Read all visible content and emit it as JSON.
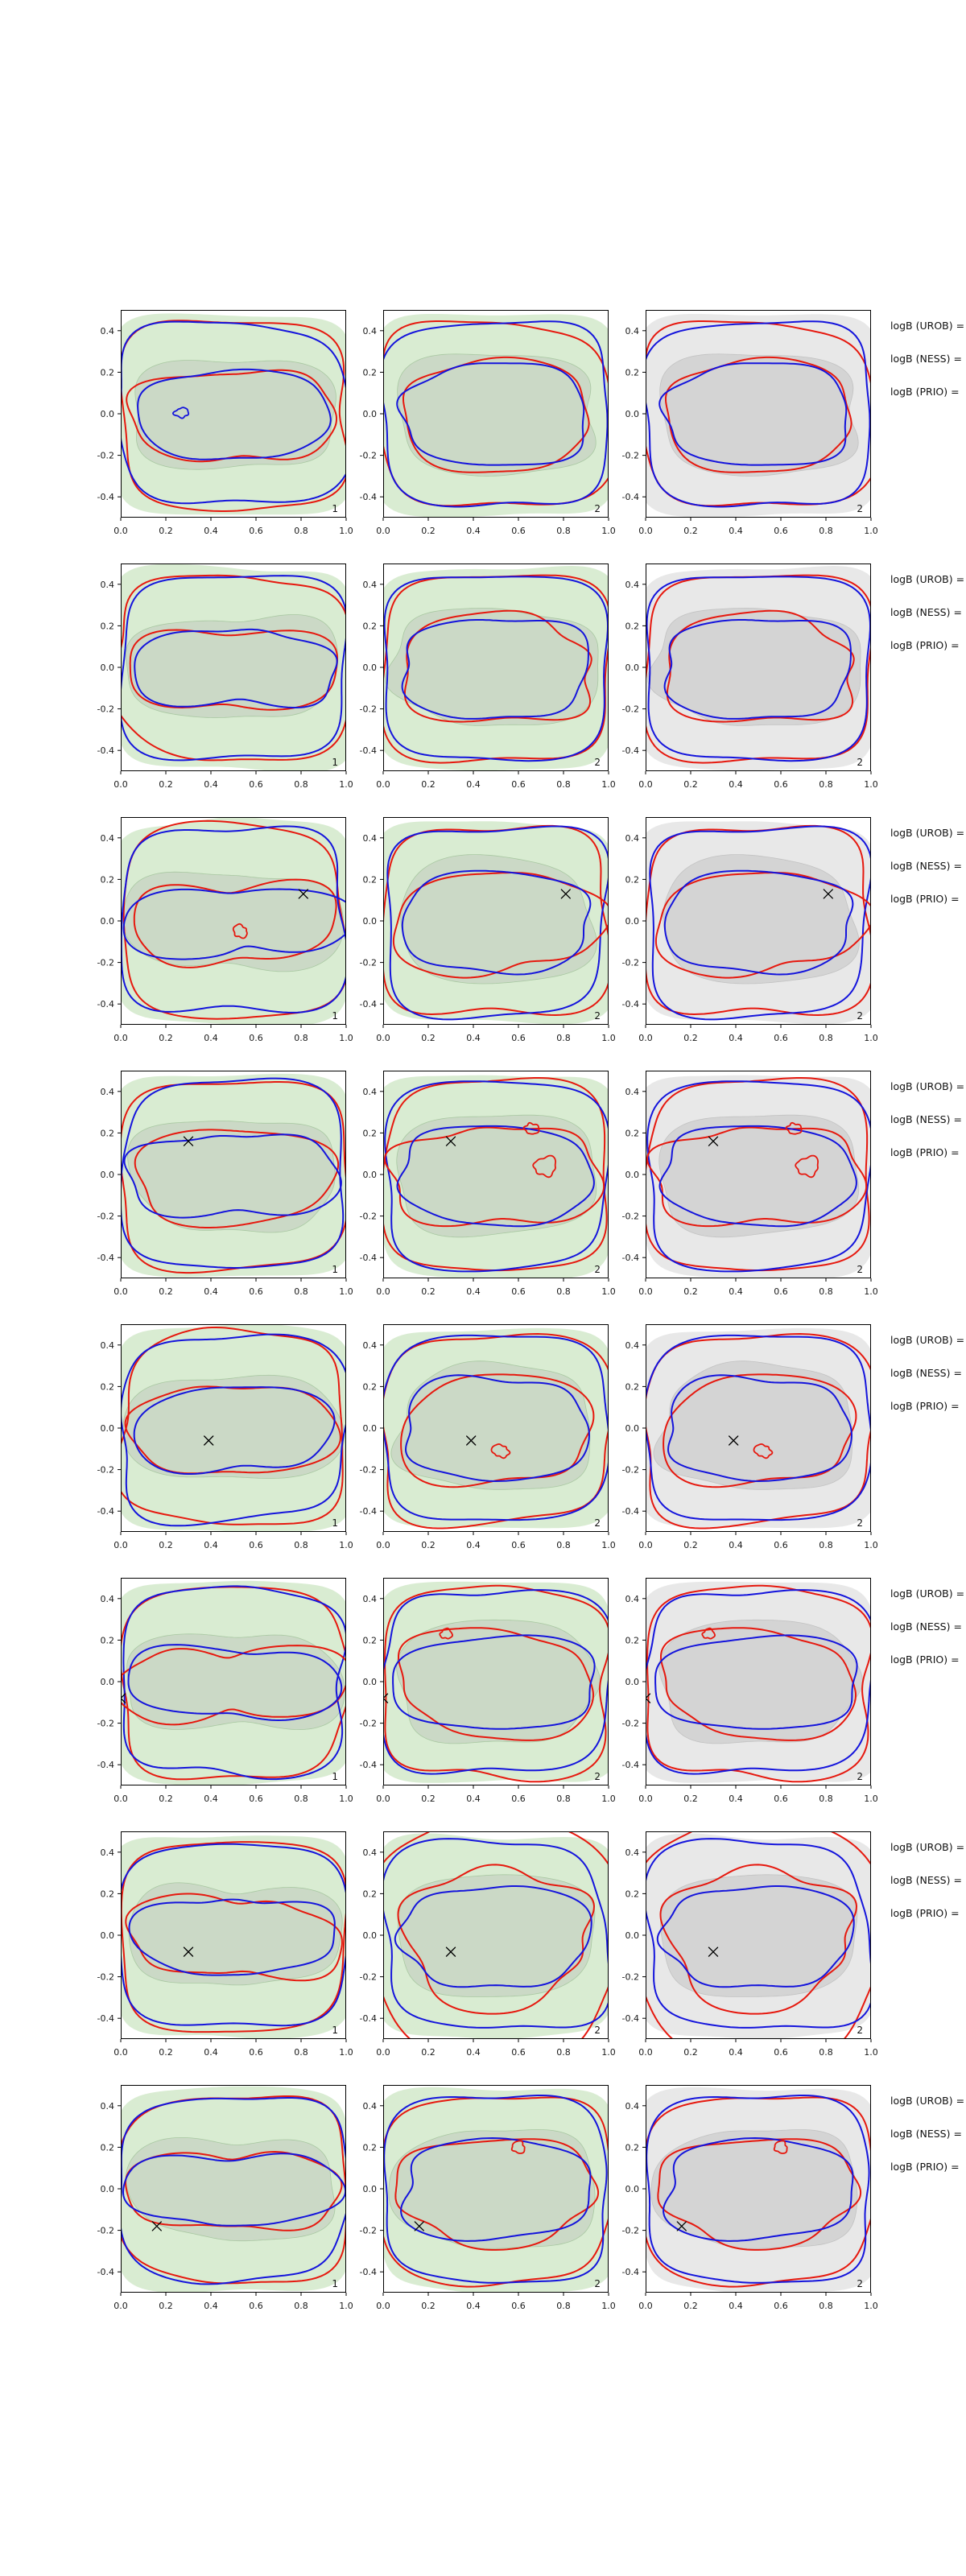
{
  "page": {
    "background": "#ffffff"
  },
  "chart_data": {
    "type": "contour-grid",
    "grid": {
      "rows": 8,
      "cols": 3
    },
    "axes": {
      "xlim": [
        0.0,
        1.0
      ],
      "ylim": [
        -0.5,
        0.5
      ],
      "x_ticks": [
        "0.0",
        "0.2",
        "0.4",
        "0.6",
        "0.8",
        "1.0"
      ],
      "x_tick_values": [
        0.0,
        0.2,
        0.4,
        0.6,
        0.8,
        1.0
      ],
      "y_ticks": [
        "0.4",
        "0.2",
        "0.0",
        "-0.2",
        "-0.4"
      ],
      "y_tick_values": [
        0.4,
        0.2,
        0.0,
        -0.2,
        -0.4
      ],
      "grid_lines": false
    },
    "colors": {
      "background": "#ffffff",
      "green_outer_fill": "#d9ecd2",
      "green_inner_fill": "#cbd9c6",
      "green_inner_edge": "#a9c8a2",
      "gray_outer_fill": "#e8e8e8",
      "gray_inner_fill": "#d4d4d4",
      "gray_inner_edge": "#c2c2c2",
      "red_contour": "#e6180e",
      "blue_contour": "#1414dc",
      "marker": "#000000",
      "spine": "#000000",
      "tick_text": "#1a1a1a"
    },
    "annotation_lines": [
      "logB (UROB) =",
      "logB (NESS) =",
      "logB (PRIO) ="
    ],
    "rows": [
      {
        "corner_labels": [
          "1",
          "2",
          "2"
        ],
        "marker": null,
        "style": {
          "seedA": 11,
          "seedB": 12,
          "waistA": 0.12,
          "wild_red_b": false,
          "loopsA": [
            {
              "color": "blue",
              "x": 0.27,
              "y": 0.005,
              "r": 0.028
            }
          ],
          "loopsB": []
        }
      },
      {
        "corner_labels": [
          "1",
          "2",
          "2"
        ],
        "marker": null,
        "style": {
          "seedA": 23,
          "seedB": 24,
          "waistA": 0.22,
          "wild_red_b": false,
          "loopsA": [],
          "loopsB": []
        }
      },
      {
        "corner_labels": [
          "1",
          "2",
          "2"
        ],
        "marker": {
          "x": 0.81,
          "y": 0.13
        },
        "style": {
          "seedA": 35,
          "seedB": 36,
          "waistA": 0.26,
          "wild_red_b": false,
          "loopsA": [
            {
              "color": "red",
              "x": 0.53,
              "y": -0.05,
              "r": 0.032
            }
          ],
          "loopsB": []
        }
      },
      {
        "corner_labels": [
          "1",
          "2",
          "2"
        ],
        "marker": {
          "x": 0.3,
          "y": 0.16
        },
        "style": {
          "seedA": 47,
          "seedB": 48,
          "waistA": 0.1,
          "wild_red_b": false,
          "loopsA": [],
          "loopsB": [
            {
              "color": "red",
              "x": 0.66,
              "y": 0.22,
              "r": 0.03
            },
            {
              "color": "red",
              "x": 0.72,
              "y": 0.04,
              "r": 0.05
            }
          ]
        }
      },
      {
        "corner_labels": [
          "1",
          "2",
          "2"
        ],
        "marker": {
          "x": 0.39,
          "y": -0.06
        },
        "style": {
          "seedA": 59,
          "seedB": 60,
          "waistA": 0.14,
          "wild_red_b": false,
          "loopsA": [],
          "loopsB": [
            {
              "color": "red",
              "x": 0.52,
              "y": -0.11,
              "r": 0.035
            }
          ]
        }
      },
      {
        "corner_labels": [
          "1",
          "2",
          "2"
        ],
        "marker": {
          "x": 0.0,
          "y": -0.08
        },
        "style": {
          "seedA": 71,
          "seedB": 72,
          "waistA": 0.28,
          "wild_red_b": false,
          "loopsA": [],
          "loopsB": [
            {
              "color": "red",
              "x": 0.28,
              "y": 0.23,
              "r": 0.026
            }
          ]
        }
      },
      {
        "corner_labels": [
          "1",
          "2",
          "2"
        ],
        "marker": {
          "x": 0.3,
          "y": -0.08
        },
        "style": {
          "seedA": 83,
          "seedB": 84,
          "waistA": 0.24,
          "wild_red_b": true,
          "loopsA": [],
          "loopsB": []
        }
      },
      {
        "corner_labels": [
          "1",
          "2",
          "2"
        ],
        "marker": {
          "x": 0.16,
          "y": -0.18
        },
        "style": {
          "seedA": 95,
          "seedB": 96,
          "waistA": 0.26,
          "wild_red_b": false,
          "loopsA": [],
          "loopsB": [
            {
              "color": "red",
              "x": 0.6,
              "y": 0.2,
              "r": 0.03
            }
          ]
        }
      }
    ]
  }
}
